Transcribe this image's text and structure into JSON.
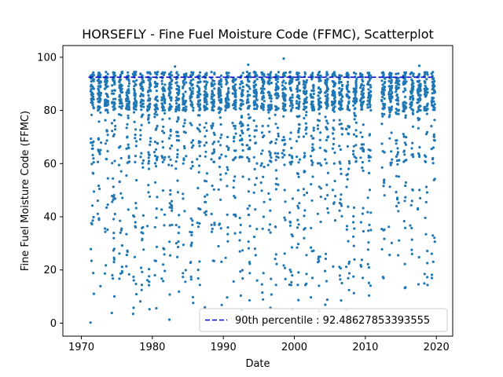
{
  "chart_data": {
    "type": "scatter",
    "title": "HORSEFLY - Fine Fuel Moisture Code (FFMC), Scatterplot",
    "xlabel": "Date",
    "ylabel": "Fine Fuel Moisture Code (FFMC)",
    "xlim": [
      1967.4,
      2022.3
    ],
    "ylim": [
      -4.9,
      104.4
    ],
    "xticks": [
      1970,
      1980,
      1990,
      2000,
      2010,
      2020
    ],
    "yticks": [
      0,
      20,
      40,
      60,
      80,
      100
    ],
    "grid": false,
    "legend_position": "bottom-right",
    "point_color": "#1f77b4",
    "years_with_data": [
      1971,
      1972,
      1973,
      1974,
      1975,
      1976,
      1977,
      1978,
      1979,
      1980,
      1981,
      1982,
      1983,
      1984,
      1985,
      1986,
      1987,
      1988,
      1989,
      1990,
      1991,
      1992,
      1993,
      1994,
      1995,
      1996,
      1997,
      1998,
      1999,
      2000,
      2001,
      2002,
      2003,
      2004,
      2005,
      2006,
      2007,
      2008,
      2009,
      2010,
      2012,
      2013,
      2014,
      2015,
      2016,
      2017,
      2018,
      2019
    ],
    "fire_season": {
      "start": 0.3,
      "end": 0.78
    },
    "series": [
      {
        "name": "",
        "kind": "scatter",
        "notable_points": [
          {
            "x": 1971.3,
            "y": 0.2
          },
          {
            "x": 1974.3,
            "y": 3.8
          },
          {
            "x": 1977.3,
            "y": 3.5
          },
          {
            "x": 1982.4,
            "y": 1.3
          },
          {
            "x": 1983.2,
            "y": 96.5
          },
          {
            "x": 1993.5,
            "y": 97.2
          },
          {
            "x": 1998.5,
            "y": 99.5
          },
          {
            "x": 2003.5,
            "y": 4.5
          },
          {
            "x": 2004.4,
            "y": 2.5
          },
          {
            "x": 2017.6,
            "y": 96.8
          }
        ]
      },
      {
        "name": "90th percentile : 92.48627853393555",
        "kind": "hline",
        "y": 92.48627853393555,
        "x_range": [
          1971.0,
          2019.5
        ],
        "color": "#0000cc",
        "style": "dashed"
      }
    ]
  }
}
